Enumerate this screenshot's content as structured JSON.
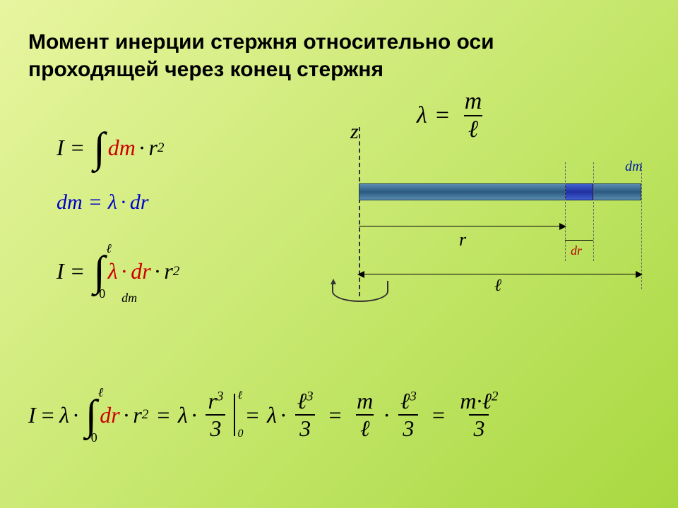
{
  "title_line1": "Момент инерции стержня относительно оси",
  "title_line2": "проходящей через конец стержня",
  "lambda_def": {
    "lhs": "λ",
    "eq": "=",
    "num": "m",
    "den": "ℓ"
  },
  "eq1": {
    "I": "I",
    "eq": "=",
    "int": "∫",
    "dm": "dm",
    "dot": "·",
    "r": "r",
    "exp": "2"
  },
  "eq2": {
    "dm": "dm",
    "eq": "=",
    "lam": "λ",
    "dot": "·",
    "dr": "dr"
  },
  "eq3": {
    "I": "I",
    "eq": "=",
    "int": "∫",
    "upper": "ℓ",
    "lower": "0",
    "lam": "λ",
    "dot": "·",
    "dr": "dr",
    "r": "r",
    "exp": "2",
    "dm_label": "dm"
  },
  "eq4": {
    "I": "I",
    "lam": "λ",
    "eq": "=",
    "dot": "·",
    "int": "∫",
    "upper": "ℓ",
    "lower": "0",
    "dr": "dr",
    "r": "r",
    "exp2": "2",
    "frac_r3": {
      "num": "r",
      "num_exp": "3",
      "den": "3"
    },
    "frac_l3": {
      "num": "ℓ",
      "num_exp": "3",
      "den": "3"
    },
    "frac_ml": {
      "num": "m",
      "den": "ℓ"
    },
    "frac_ml2": {
      "num": "m·ℓ",
      "num_exp": "2",
      "den": "3"
    }
  },
  "diagram": {
    "z": "z",
    "r": "r",
    "dr": "dr",
    "dm": "dm",
    "l": "ℓ",
    "rod_color_light": "#5a8bb0",
    "rod_color_dark": "#2a5a80",
    "dm_color": "#2030a0"
  },
  "colors": {
    "red": "#cc0000",
    "blue": "#0000cc",
    "text": "#000000"
  }
}
